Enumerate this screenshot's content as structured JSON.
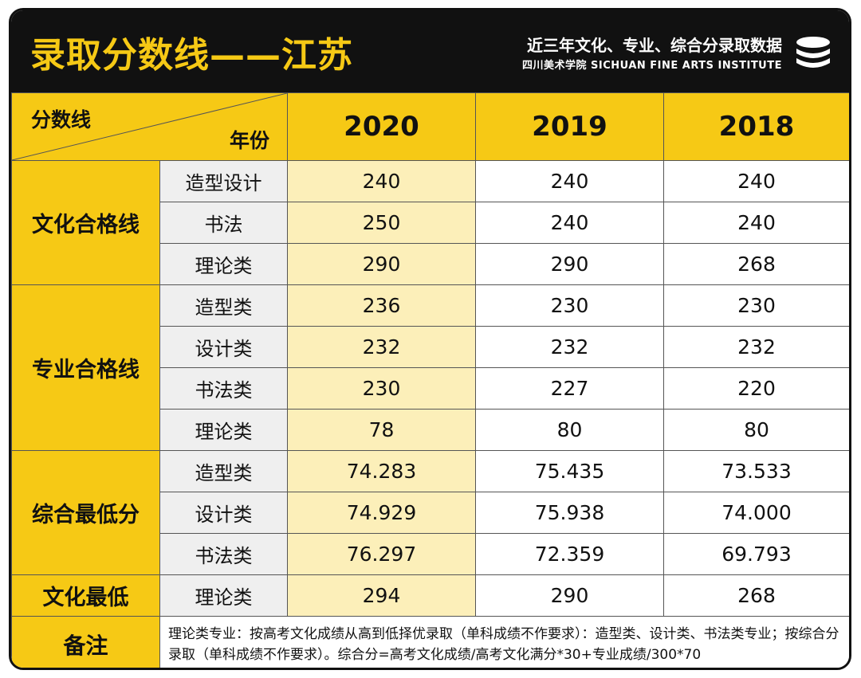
{
  "header": {
    "title": "录取分数线——江苏",
    "subtitle": "近三年文化、专业、综合分录取数据",
    "institution": "四川美术学院 SICHUAN FINE ARTS INSTITUTE"
  },
  "table": {
    "corner_top": "分数线",
    "corner_bottom": "年份",
    "years": [
      "2020",
      "2019",
      "2018"
    ],
    "groups": [
      {
        "name": "文化合格线",
        "rows": [
          {
            "label": "造型设计",
            "values": [
              "240",
              "240",
              "240"
            ]
          },
          {
            "label": "书法",
            "values": [
              "250",
              "240",
              "240"
            ]
          },
          {
            "label": "理论类",
            "values": [
              "290",
              "290",
              "268"
            ]
          }
        ]
      },
      {
        "name": "专业合格线",
        "rows": [
          {
            "label": "造型类",
            "values": [
              "236",
              "230",
              "230"
            ]
          },
          {
            "label": "设计类",
            "values": [
              "232",
              "232",
              "232"
            ]
          },
          {
            "label": "书法类",
            "values": [
              "230",
              "227",
              "220"
            ]
          },
          {
            "label": "理论类",
            "values": [
              "78",
              "80",
              "80"
            ]
          }
        ]
      },
      {
        "name": "综合最低分",
        "rows": [
          {
            "label": "造型类",
            "values": [
              "74.283",
              "75.435",
              "73.533"
            ]
          },
          {
            "label": "设计类",
            "values": [
              "74.929",
              "75.938",
              "74.000"
            ]
          },
          {
            "label": "书法类",
            "values": [
              "76.297",
              "72.359",
              "69.793"
            ]
          }
        ]
      },
      {
        "name": "文化最低",
        "rows": [
          {
            "label": "理论类",
            "values": [
              "294",
              "290",
              "268"
            ]
          }
        ]
      }
    ],
    "note_label": "备注",
    "note_text": "理论类专业：按高考文化成绩从高到低择优录取（单科成绩不作要求）：造型类、设计类、书法类专业；按综合分录取（单科成绩不作要求）。综合分=高考文化成绩/高考文化满分*30+专业成绩/300*70"
  },
  "colors": {
    "accent": "#f6c915",
    "highlight": "#fcefb9",
    "dark": "#111111"
  },
  "icons": {
    "logo": "stacked-discs-logo-icon"
  }
}
